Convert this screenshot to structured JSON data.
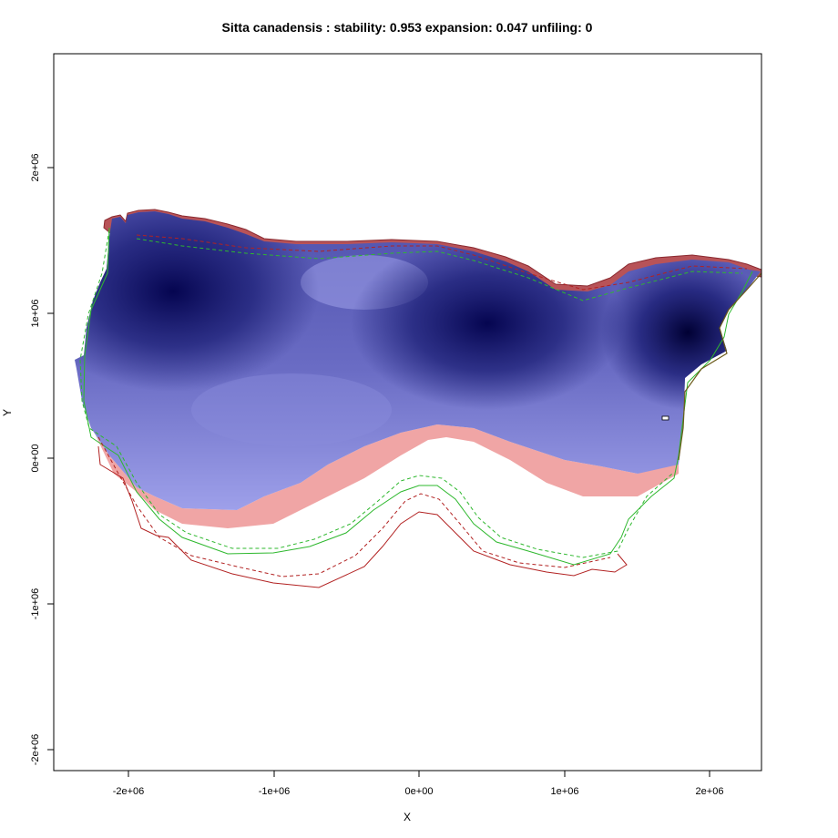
{
  "chart_data": {
    "type": "heatmap",
    "title": "Sitta canadensis : stability: 0.953 expansion: 0.047 unfiling: 0",
    "xlabel": "X",
    "ylabel": "Y",
    "xlim": [
      -2500000,
      2350000
    ],
    "ylim": [
      -2150000,
      2800000
    ],
    "x_ticks": [
      {
        "value": -2000000,
        "label": "-2e+06"
      },
      {
        "value": -1000000,
        "label": "-1e+06"
      },
      {
        "value": 0,
        "label": "0e+00"
      },
      {
        "value": 1000000,
        "label": "1e+06"
      },
      {
        "value": 2000000,
        "label": "2e+06"
      }
    ],
    "y_ticks": [
      {
        "value": 2000000,
        "label": "2e+06"
      },
      {
        "value": 1000000,
        "label": "1e+06"
      },
      {
        "value": 0,
        "label": "0e+00"
      },
      {
        "value": -1000000,
        "label": "-1e+06"
      },
      {
        "value": -2000000,
        "label": "-2e+06"
      }
    ],
    "grid": false,
    "colors": {
      "stability_dark": "#050550",
      "stability_light": "#9ea0ea",
      "expansion": "#f0a5a5",
      "northern_edge": "#b85358",
      "green_contour": "#2eb82e",
      "red_contour": "#b22222"
    },
    "stability_hotspots": [
      {
        "x": -1700000,
        "y": 1100000
      },
      {
        "x": 450000,
        "y": 950000
      },
      {
        "x": 1800000,
        "y": 850000
      }
    ]
  }
}
